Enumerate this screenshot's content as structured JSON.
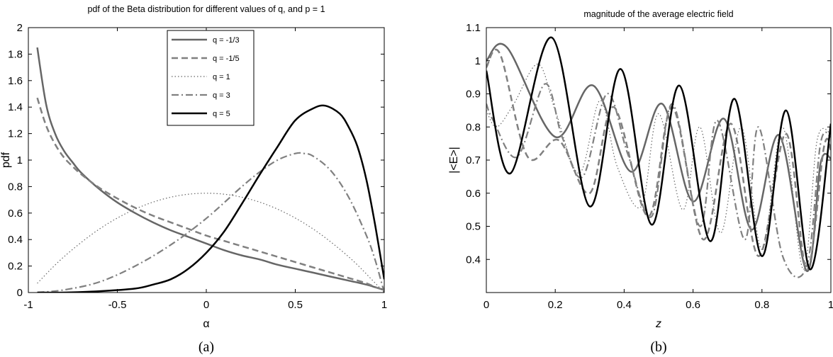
{
  "chart_data": [
    {
      "type": "line",
      "panel_label": "(a)",
      "title": "pdf of the Beta distribution for different values of q, and p = 1",
      "xlabel": "α",
      "ylabel": "pdf",
      "xlim": [
        -1,
        1
      ],
      "ylim": [
        0,
        2
      ],
      "xticks": [
        "-1",
        "-0.5",
        "0",
        "0.5",
        "1"
      ],
      "yticks": [
        "0",
        "0.2",
        "0.4",
        "0.6",
        "0.8",
        "1",
        "1.2",
        "1.4",
        "1.6",
        "1.8",
        "2"
      ],
      "grid": false,
      "legend_position": "top-center",
      "series": [
        {
          "name": "q = -1/3",
          "color": "#666666",
          "dash": "solid",
          "width": 2.5,
          "x": [
            -0.95,
            -0.9,
            -0.85,
            -0.8,
            -0.75,
            -0.7,
            -0.6,
            -0.5,
            -0.4,
            -0.3,
            -0.2,
            -0.1,
            0,
            0.1,
            0.2,
            0.3,
            0.4,
            0.5,
            0.6,
            0.7,
            0.8,
            0.9,
            0.95,
            1.0
          ],
          "y": [
            1.85,
            1.42,
            1.2,
            1.07,
            0.98,
            0.9,
            0.78,
            0.68,
            0.6,
            0.53,
            0.47,
            0.42,
            0.37,
            0.32,
            0.28,
            0.25,
            0.21,
            0.18,
            0.15,
            0.12,
            0.09,
            0.06,
            0.04,
            0.02
          ]
        },
        {
          "name": "q = -1/5",
          "color": "#808080",
          "dash": "dash",
          "width": 2.5,
          "x": [
            -0.95,
            -0.9,
            -0.85,
            -0.8,
            -0.75,
            -0.7,
            -0.6,
            -0.5,
            -0.4,
            -0.3,
            -0.2,
            -0.1,
            0,
            0.1,
            0.2,
            0.3,
            0.4,
            0.5,
            0.6,
            0.7,
            0.8,
            0.9,
            0.95,
            1.0
          ],
          "y": [
            1.47,
            1.26,
            1.12,
            1.02,
            0.95,
            0.89,
            0.79,
            0.71,
            0.64,
            0.58,
            0.53,
            0.48,
            0.43,
            0.39,
            0.35,
            0.31,
            0.27,
            0.23,
            0.19,
            0.15,
            0.11,
            0.07,
            0.04,
            0.02
          ]
        },
        {
          "name": "q = 1",
          "color": "#666666",
          "dash": "dot",
          "width": 1.2,
          "x": [
            -0.95,
            -0.8,
            -0.6,
            -0.4,
            -0.2,
            0,
            0.2,
            0.4,
            0.6,
            0.8,
            0.95,
            1.0
          ],
          "y": [
            0.07,
            0.27,
            0.48,
            0.63,
            0.72,
            0.75,
            0.72,
            0.63,
            0.48,
            0.27,
            0.07,
            0.0
          ]
        },
        {
          "name": "q = 3",
          "color": "#808080",
          "dash": "dashdot",
          "width": 2.2,
          "x": [
            -0.95,
            -0.8,
            -0.6,
            -0.4,
            -0.2,
            0,
            0.2,
            0.3,
            0.4,
            0.5,
            0.55,
            0.6,
            0.7,
            0.8,
            0.9,
            0.95,
            1.0
          ],
          "y": [
            0.0,
            0.02,
            0.08,
            0.2,
            0.36,
            0.56,
            0.8,
            0.91,
            1.0,
            1.05,
            1.05,
            1.03,
            0.92,
            0.72,
            0.43,
            0.24,
            0.0
          ]
        },
        {
          "name": "q = 5",
          "color": "#000000",
          "dash": "solid",
          "width": 2.5,
          "x": [
            -0.95,
            -0.8,
            -0.6,
            -0.4,
            -0.3,
            -0.2,
            -0.1,
            0,
            0.1,
            0.2,
            0.3,
            0.4,
            0.5,
            0.6,
            0.67,
            0.75,
            0.8,
            0.85,
            0.9,
            0.95,
            1.0
          ],
          "y": [
            0.0,
            0.0,
            0.01,
            0.03,
            0.06,
            0.1,
            0.18,
            0.3,
            0.46,
            0.67,
            0.89,
            1.1,
            1.3,
            1.39,
            1.41,
            1.35,
            1.25,
            1.1,
            0.85,
            0.5,
            0.1
          ]
        }
      ]
    },
    {
      "type": "line",
      "panel_label": "(b)",
      "title": "magnitude of the average electric field",
      "xlabel": "z",
      "ylabel": "|<E>|",
      "xlim": [
        0,
        1
      ],
      "ylim": [
        0.3,
        1.1
      ],
      "xticks": [
        "0",
        "0.2",
        "0.4",
        "0.6",
        "0.8",
        "1"
      ],
      "yticks": [
        "0.4",
        "0.5",
        "0.6",
        "0.7",
        "0.8",
        "0.9",
        "1",
        "1.1"
      ],
      "grid": false,
      "series": [
        {
          "color": "#666666",
          "dash": "solid",
          "width": 2.5,
          "x": [
            0,
            0.06,
            0.2,
            0.31,
            0.42,
            0.51,
            0.6,
            0.69,
            0.77,
            0.85,
            0.93,
            0.97,
            1.0
          ],
          "y": [
            1.0,
            1.04,
            0.77,
            0.925,
            0.665,
            0.87,
            0.575,
            0.825,
            0.49,
            0.775,
            0.365,
            0.69,
            0.705
          ]
        },
        {
          "color": "#808080",
          "dash": "dash",
          "width": 2.5,
          "x": [
            0,
            0.04,
            0.12,
            0.21,
            0.3,
            0.37,
            0.47,
            0.54,
            0.63,
            0.71,
            0.79,
            0.87,
            0.93,
            0.98,
            1.0
          ],
          "y": [
            0.98,
            1.02,
            0.71,
            0.76,
            0.6,
            0.86,
            0.53,
            0.86,
            0.46,
            0.81,
            0.41,
            0.78,
            0.37,
            0.74,
            0.73
          ]
        },
        {
          "color": "#666666",
          "dash": "dot",
          "width": 1.2,
          "x": [
            0,
            0.03,
            0.08,
            0.15,
            0.2,
            0.27,
            0.33,
            0.38,
            0.45,
            0.5,
            0.57,
            0.62,
            0.68,
            0.74,
            0.8,
            0.86,
            0.92,
            0.96,
            1.0
          ],
          "y": [
            0.85,
            0.8,
            0.87,
            0.99,
            0.85,
            0.66,
            0.88,
            0.68,
            0.56,
            0.84,
            0.55,
            0.8,
            0.48,
            0.8,
            0.43,
            0.8,
            0.37,
            0.76,
            0.78
          ]
        },
        {
          "color": "#808080",
          "dash": "dashdot",
          "width": 2.2,
          "x": [
            0,
            0.02,
            0.09,
            0.17,
            0.22,
            0.28,
            0.35,
            0.41,
            0.48,
            0.54,
            0.62,
            0.67,
            0.75,
            0.79,
            0.86,
            0.93,
            0.97,
            1.0
          ],
          "y": [
            0.87,
            0.82,
            0.71,
            0.93,
            0.77,
            0.65,
            0.9,
            0.72,
            0.53,
            0.87,
            0.5,
            0.82,
            0.46,
            0.8,
            0.41,
            0.38,
            0.75,
            0.77
          ]
        },
        {
          "color": "#000000",
          "dash": "solid",
          "width": 2.5,
          "x": [
            0,
            0.07,
            0.19,
            0.3,
            0.39,
            0.48,
            0.56,
            0.65,
            0.72,
            0.8,
            0.87,
            0.94,
            1.0
          ],
          "y": [
            0.97,
            0.66,
            1.07,
            0.56,
            0.975,
            0.505,
            0.925,
            0.455,
            0.885,
            0.41,
            0.85,
            0.37,
            0.81
          ]
        }
      ]
    }
  ]
}
